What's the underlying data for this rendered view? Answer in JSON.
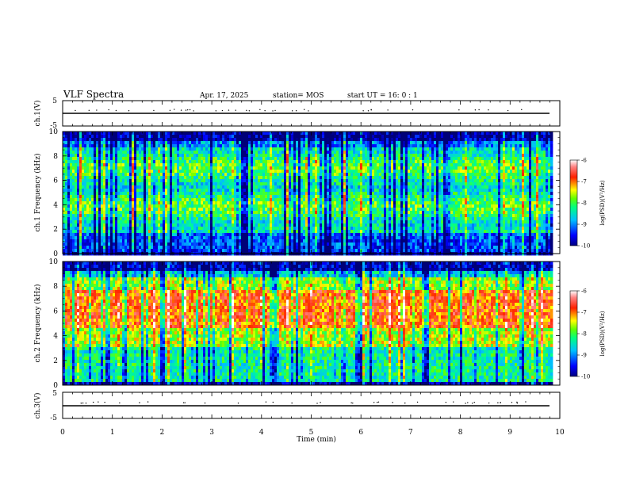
{
  "header": {
    "title": "VLF Spectra",
    "date": "Apr. 17, 2025",
    "station": "station= MOS",
    "start_ut": "start UT =   16: 0  : 1"
  },
  "chart_data": [
    {
      "type": "line",
      "panel": "ch1-waveform",
      "ylabel": "ch.1(V)",
      "ylim": [
        -5,
        5
      ],
      "yticks": [
        "5",
        "-5"
      ],
      "xlim": [
        0,
        10
      ],
      "series": [
        {
          "x": [
            0,
            9.85
          ],
          "values": [
            0,
            0
          ]
        }
      ]
    },
    {
      "type": "heatmap",
      "panel": "ch1-spectrogram",
      "ylabel": "ch.1 Frequency (kHz)",
      "ylim": [
        0,
        10
      ],
      "yticks": [
        "0",
        "2",
        "4",
        "6",
        "8",
        "10"
      ],
      "xlim": [
        0,
        10
      ],
      "data_x_extent": [
        0,
        9.85
      ],
      "colorbar": {
        "label": "log(PSD)(V²/Hz)",
        "range": [
          -10,
          -6
        ],
        "ticks": [
          "-6",
          "-7",
          "-8",
          "-9",
          "-10"
        ]
      }
    },
    {
      "type": "heatmap",
      "panel": "ch2-spectrogram",
      "ylabel": "ch.2 Frequency (kHz)",
      "ylim": [
        0,
        10
      ],
      "yticks": [
        "0",
        "2",
        "4",
        "6",
        "8",
        "10"
      ],
      "xlim": [
        0,
        10
      ],
      "data_x_extent": [
        0,
        9.85
      ],
      "colorbar": {
        "label": "log(PSD)(V²/Hz)",
        "range": [
          -10,
          -6
        ],
        "ticks": [
          "-6",
          "-7",
          "-8",
          "-9",
          "-10"
        ]
      }
    },
    {
      "type": "line",
      "panel": "ch3-waveform",
      "ylabel": "ch.3(V)",
      "ylim": [
        -5,
        5
      ],
      "yticks": [
        "5",
        "-5"
      ],
      "xlim": [
        0,
        10
      ],
      "xlabel": "Time (min)",
      "xticks": [
        "0",
        "1",
        "2",
        "3",
        "4",
        "5",
        "6",
        "7",
        "8",
        "9",
        "10"
      ],
      "series": [
        {
          "x": [
            0,
            9.85
          ],
          "values": [
            0,
            0
          ]
        }
      ]
    }
  ]
}
